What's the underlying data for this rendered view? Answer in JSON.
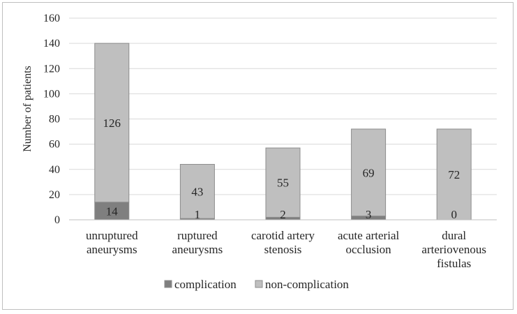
{
  "chart_data": {
    "type": "bar",
    "stacked": true,
    "categories": [
      [
        "unruptured",
        "aneurysms"
      ],
      [
        "ruptured",
        "aneurysms"
      ],
      [
        "carotid artery",
        "stenosis"
      ],
      [
        "acute arterial",
        "occlusion"
      ],
      [
        "dural",
        "arteriovenous",
        "fistulas"
      ]
    ],
    "series": [
      {
        "name": "complication",
        "values": [
          14,
          1,
          2,
          3,
          0
        ],
        "color": "#7f7f7f"
      },
      {
        "name": "non-complication",
        "values": [
          126,
          43,
          55,
          69,
          72
        ],
        "color": "#bfbfbf"
      }
    ],
    "ylabel": "Number of patients",
    "xlabel": "",
    "ylim": [
      0,
      160
    ],
    "yticks": [
      0,
      20,
      40,
      60,
      80,
      100,
      120,
      140,
      160
    ],
    "grid": true,
    "legend_position": "bottom"
  }
}
